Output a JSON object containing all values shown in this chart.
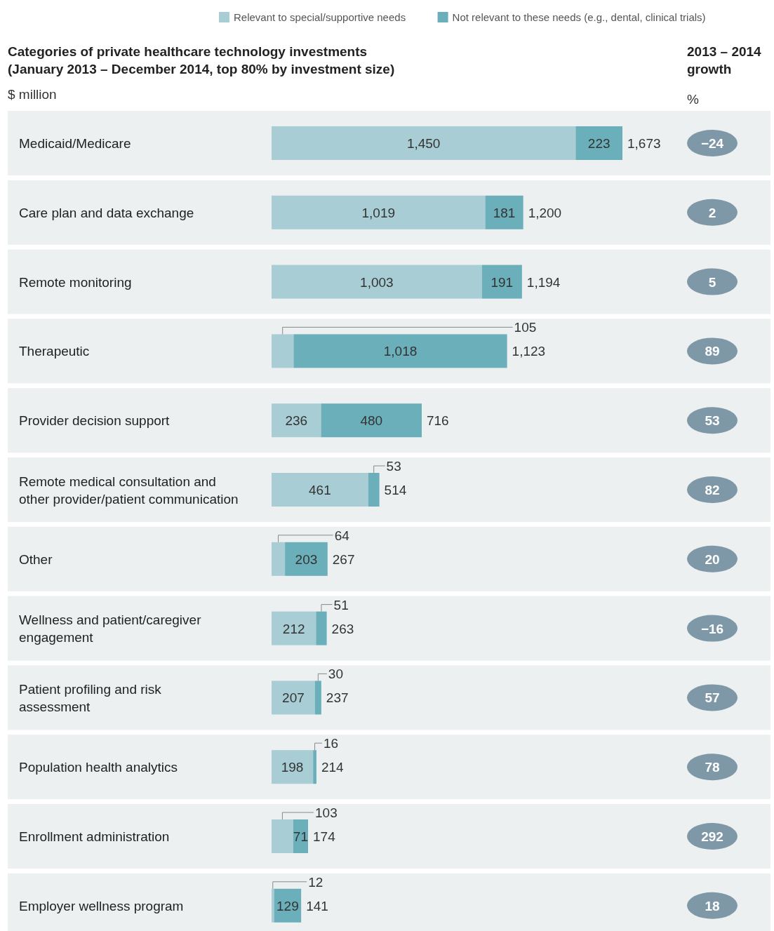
{
  "chart_data": {
    "type": "bar",
    "orientation": "horizontal",
    "stacked": true,
    "title": "Categories of private healthcare technology investments (January 2013 – December 2014, top 80% by investment size)",
    "xlabel": "$ million",
    "categories": [
      "Medicaid/Medicare",
      "Care plan and data exchange",
      "Remote monitoring",
      "Therapeutic",
      "Provider decision support",
      "Remote medical consultation and other provider/patient communication",
      "Other",
      "Wellness and patient/caregiver engagement",
      "Patient profiling and risk assessment",
      "Population health analytics",
      "Enrollment administration",
      "Employer wellness program"
    ],
    "series": [
      {
        "name": "Relevant to special/supportive needs",
        "color": "#a8cdd4",
        "values": [
          1450,
          1019,
          1003,
          105,
          236,
          461,
          64,
          212,
          207,
          198,
          103,
          12
        ],
        "value_labels": [
          "1,450",
          "1,019",
          "1,003",
          "105",
          "236",
          "461",
          "64",
          "212",
          "207",
          "198",
          "103",
          "12"
        ]
      },
      {
        "name": "Not relevant to these needs (e.g., dental, clinical trials)",
        "color": "#6aafb9",
        "values": [
          223,
          181,
          191,
          1018,
          480,
          53,
          203,
          51,
          30,
          16,
          71,
          129
        ],
        "value_labels": [
          "223",
          "181",
          "191",
          "1,018",
          "480",
          "53",
          "203",
          "51",
          "30",
          "16",
          "71",
          "129"
        ]
      }
    ],
    "totals": [
      "1,673",
      "1,200",
      "1,194",
      "1,123",
      "716",
      "514",
      "267",
      "263",
      "237",
      "214",
      "174",
      "141"
    ],
    "legend": "top right",
    "annotations": [
      "2013 – 2014 growth",
      "%",
      "−24",
      "2",
      "5",
      "89",
      "53",
      "82",
      "20",
      "−16",
      "57",
      "78",
      "292",
      "18"
    ]
  }
}
